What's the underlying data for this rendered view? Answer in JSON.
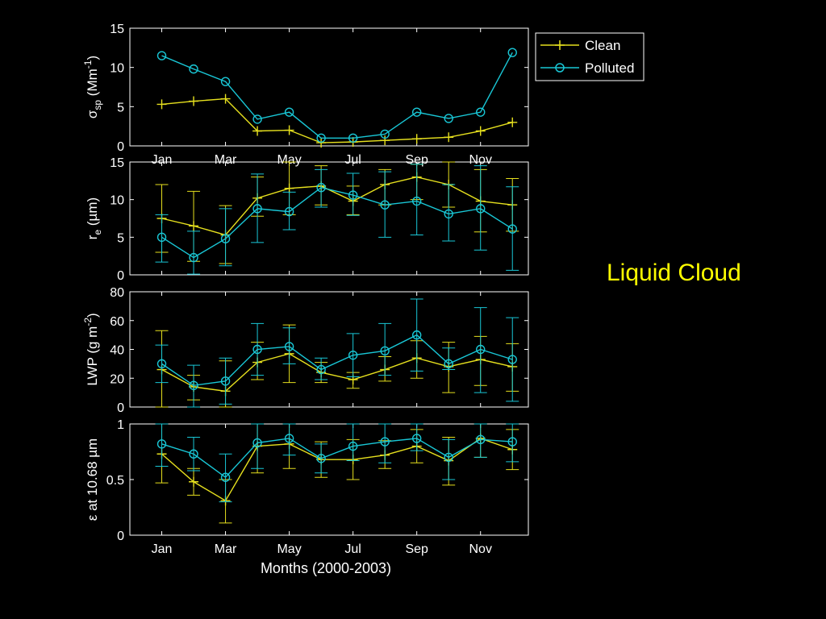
{
  "side_title": "Liquid Cloud",
  "colors": {
    "background": "#000000",
    "axes": "#ffffff",
    "clean": "#e6e01e",
    "polluted": "#19c7d6",
    "side_title": "#ffff00"
  },
  "legend": {
    "clean": "Clean",
    "polluted": "Polluted",
    "clean_marker": "plus",
    "polluted_marker": "circle",
    "placement": "top-right outside"
  },
  "xaxis_label": "Months (2000-2003)",
  "chart_data": [
    {
      "type": "line",
      "id": "sigma",
      "ylabel": {
        "main": "σ",
        "sub": "sp",
        "rest": " (Mm",
        "sup": "-1",
        "end": ")"
      },
      "ylim": [
        0,
        15
      ],
      "yticks": [
        0,
        5,
        10,
        15
      ],
      "xlim": [
        0,
        12.5
      ],
      "xticks": [
        1,
        3,
        5,
        7,
        9,
        11
      ],
      "xticklabels": [
        "Jan",
        "Mar",
        "May",
        "Jul",
        "Sep",
        "Nov"
      ],
      "x": [
        1,
        2,
        3,
        4,
        5,
        6,
        7,
        8,
        9,
        10,
        11,
        12
      ],
      "series": [
        {
          "name": "Clean",
          "values": [
            5.3,
            5.7,
            6.0,
            1.9,
            2.0,
            0.4,
            0.5,
            0.7,
            0.9,
            1.1,
            1.9,
            3.0
          ]
        },
        {
          "name": "Polluted",
          "values": [
            11.5,
            9.8,
            8.2,
            3.4,
            4.3,
            1.0,
            1.0,
            1.5,
            4.3,
            3.5,
            4.3,
            11.9
          ]
        }
      ]
    },
    {
      "type": "line",
      "id": "re",
      "ylabel": {
        "main": "r",
        "sub": "e",
        "rest": " (µm)",
        "sup": "",
        "end": ""
      },
      "ylim": [
        0,
        15
      ],
      "yticks": [
        0,
        5,
        10,
        15
      ],
      "xlim": [
        0,
        12.5
      ],
      "xticks": [
        1,
        3,
        5,
        7,
        9,
        11
      ],
      "x": [
        1,
        2,
        3,
        4,
        5,
        6,
        7,
        8,
        9,
        10,
        11,
        12
      ],
      "series": [
        {
          "name": "Clean",
          "values": [
            7.5,
            6.5,
            5.3,
            10.2,
            11.5,
            11.8,
            9.8,
            12.0,
            13.0,
            12.0,
            9.8,
            9.3
          ],
          "err_low": [
            3.0,
            1.8,
            1.5,
            7.8,
            8.0,
            9.3,
            8.0,
            9.3,
            10.0,
            9.0,
            5.7,
            5.8
          ],
          "err_high": [
            12.0,
            11.1,
            9.2,
            13.0,
            15.0,
            14.5,
            11.8,
            14.0,
            14.7,
            15.0,
            14.0,
            12.8
          ]
        },
        {
          "name": "Polluted",
          "values": [
            5.0,
            2.3,
            4.8,
            8.8,
            8.4,
            11.6,
            10.6,
            9.3,
            9.8,
            8.1,
            8.8,
            6.1
          ],
          "err_low": [
            1.7,
            0.1,
            1.2,
            4.3,
            6.0,
            9.0,
            7.9,
            5.0,
            5.3,
            4.5,
            3.3,
            0.6
          ],
          "err_high": [
            8.0,
            5.8,
            8.8,
            13.4,
            11.0,
            14.0,
            13.5,
            13.7,
            14.7,
            12.0,
            14.5,
            11.7
          ]
        }
      ]
    },
    {
      "type": "line",
      "id": "lwp",
      "ylabel": {
        "main": "LWP (g m",
        "sub": "",
        "rest": "",
        "sup": "-2",
        "end": ")"
      },
      "ylim": [
        0,
        80
      ],
      "yticks": [
        0,
        20,
        40,
        60,
        80
      ],
      "xlim": [
        0,
        12.5
      ],
      "xticks": [
        1,
        3,
        5,
        7,
        9,
        11
      ],
      "x": [
        1,
        2,
        3,
        4,
        5,
        6,
        7,
        8,
        9,
        10,
        11,
        12
      ],
      "series": [
        {
          "name": "Clean",
          "values": [
            26,
            14,
            11,
            31,
            37,
            24,
            19,
            26,
            34,
            28,
            33,
            28
          ],
          "err_low": [
            0,
            5,
            0,
            19,
            17,
            17,
            13,
            18,
            20,
            10,
            15,
            11
          ],
          "err_high": [
            53,
            22,
            32,
            45,
            57,
            31,
            24,
            35,
            46,
            45,
            49,
            44
          ]
        },
        {
          "name": "Polluted",
          "values": [
            30,
            15,
            18,
            40,
            42,
            26,
            36,
            39,
            50,
            30,
            40,
            33
          ],
          "err_low": [
            17,
            0,
            2,
            22,
            30,
            19,
            21,
            22,
            25,
            26,
            10,
            4
          ],
          "err_high": [
            43,
            29,
            34,
            58,
            55,
            34,
            51,
            58,
            75,
            41,
            69,
            62
          ]
        }
      ]
    },
    {
      "type": "line",
      "id": "emissivity",
      "ylabel": {
        "main": "ε at 10.68 µm",
        "sub": "",
        "rest": "",
        "sup": "",
        "end": ""
      },
      "ylim": [
        0,
        1
      ],
      "yticks": [
        0,
        0.5,
        1
      ],
      "ytickstrings": [
        "0",
        "0.5",
        "1"
      ],
      "xlim": [
        0,
        12.5
      ],
      "xticks": [
        1,
        3,
        5,
        7,
        9,
        11
      ],
      "xticklabels": [
        "Jan",
        "Mar",
        "May",
        "Jul",
        "Sep",
        "Nov"
      ],
      "x": [
        1,
        2,
        3,
        4,
        5,
        6,
        7,
        8,
        9,
        10,
        11,
        12
      ],
      "series": [
        {
          "name": "Clean",
          "values": [
            0.73,
            0.48,
            0.31,
            0.8,
            0.82,
            0.68,
            0.68,
            0.72,
            0.8,
            0.67,
            0.87,
            0.77
          ],
          "err_low": [
            0.47,
            0.36,
            0.11,
            0.56,
            0.6,
            0.52,
            0.5,
            0.6,
            0.65,
            0.45,
            0.7,
            0.59
          ],
          "err_high": [
            1.0,
            0.6,
            0.5,
            1.0,
            1.0,
            0.84,
            0.86,
            0.85,
            0.95,
            0.88,
            1.0,
            0.95
          ]
        },
        {
          "name": "Polluted",
          "values": [
            0.82,
            0.73,
            0.52,
            0.83,
            0.87,
            0.69,
            0.8,
            0.84,
            0.87,
            0.7,
            0.86,
            0.84
          ],
          "err_low": [
            0.62,
            0.58,
            0.3,
            0.6,
            0.72,
            0.56,
            0.67,
            0.65,
            0.76,
            0.5,
            0.7,
            0.66
          ],
          "err_high": [
            1.0,
            0.88,
            0.73,
            1.0,
            1.0,
            0.82,
            1.0,
            1.0,
            1.0,
            0.86,
            1.0,
            1.0
          ]
        }
      ]
    }
  ]
}
